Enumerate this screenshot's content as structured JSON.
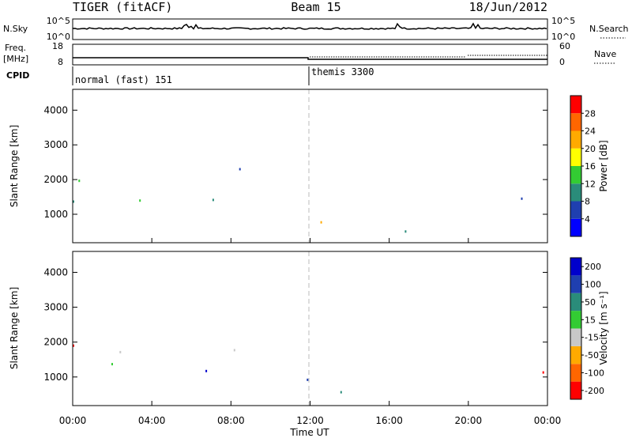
{
  "header": {
    "title": "TIGER (fitACF)",
    "beam": "Beam 15",
    "date": "18/Jun/2012"
  },
  "summary": {
    "nsky": {
      "label": "N.Sky",
      "ticks": [
        "10^5",
        "10^0"
      ]
    },
    "nsearch": {
      "label": "N.Search",
      "ticks": [
        "10^5",
        "10^0"
      ]
    },
    "freq": {
      "label_line1": "Freq.",
      "label_line2": "[MHz]",
      "ticks": [
        "18",
        "8"
      ]
    },
    "nave": {
      "label": "Nave",
      "ticks": [
        "60",
        "0"
      ]
    },
    "cpid": {
      "label": "CPID",
      "segments": [
        {
          "name": "normal (fast) 151",
          "start_hour": 0
        },
        {
          "name": "themis 3300",
          "start_hour": 12
        }
      ]
    }
  },
  "chart_data": [
    {
      "type": "heatmap",
      "title": "",
      "ylabel": "Slant Range [km]",
      "ylim": [
        180,
        4600
      ],
      "yticks": [
        "1000",
        "2000",
        "3000",
        "4000"
      ],
      "xlim": [
        0,
        24
      ],
      "colorbar": {
        "label": "Power [dB]",
        "ticks": [
          "4",
          "8",
          "12",
          "16",
          "20",
          "24",
          "28"
        ],
        "range": [
          0,
          30
        ],
        "colors": [
          "#0000ff",
          "#1f3fb0",
          "#2a8c7a",
          "#33cc33",
          "#ffff00",
          "#ffaa00",
          "#ff6600",
          "#ff0000"
        ]
      }
    },
    {
      "type": "heatmap",
      "title": "",
      "ylabel": "Slant Range [km]",
      "ylim": [
        180,
        4600
      ],
      "yticks": [
        "1000",
        "2000",
        "3000",
        "4000"
      ],
      "xlim": [
        0,
        24
      ],
      "colorbar": {
        "label": "Velocity [m s⁻¹]",
        "ticks": [
          "200",
          "100",
          "50",
          "15",
          "-15",
          "-50",
          "-100",
          "-200"
        ],
        "range": [
          -250,
          250
        ],
        "colors": [
          "#0000cc",
          "#1f3fb0",
          "#2a8c7a",
          "#33cc33",
          "#c8c8c8",
          "#ffaa00",
          "#ff6600",
          "#ff0000"
        ]
      }
    }
  ],
  "xaxis": {
    "label": "Time UT",
    "ticks": [
      "00:00",
      "04:00",
      "08:00",
      "12:00",
      "16:00",
      "20:00",
      "00:00"
    ]
  }
}
